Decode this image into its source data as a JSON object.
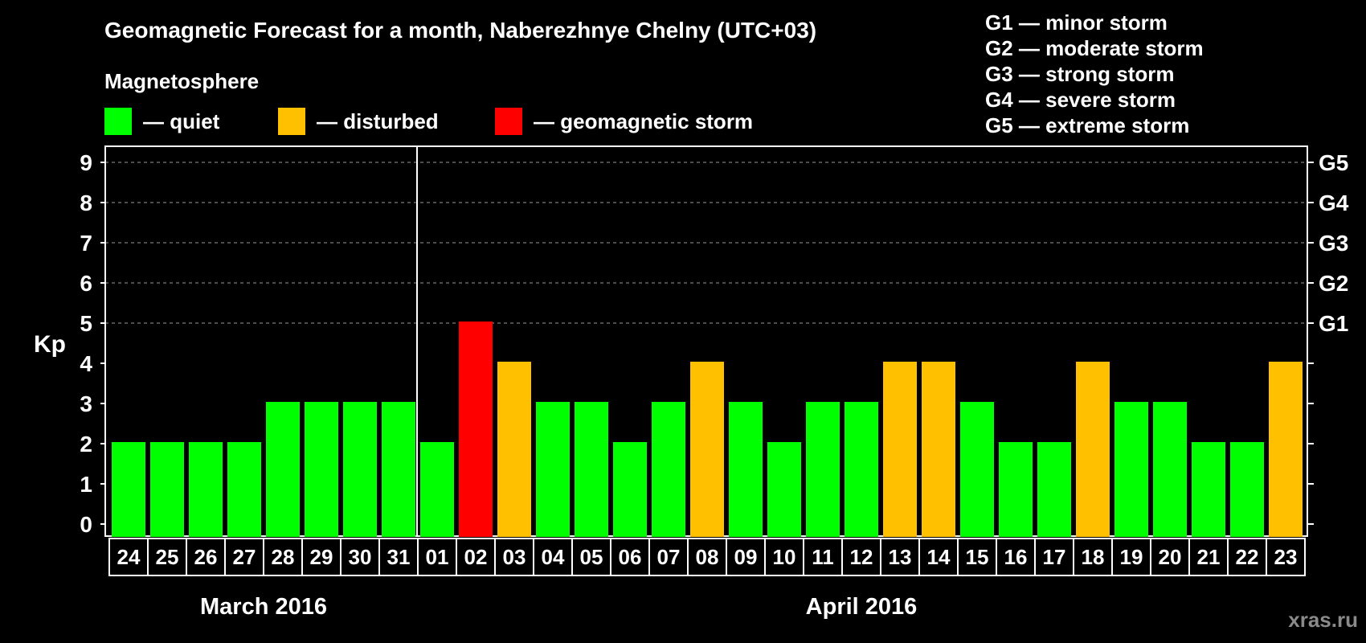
{
  "title": "Geomagnetic Forecast for a month, Naberezhnye Chelny (UTC+03)",
  "legend": {
    "title": "Magnetosphere",
    "items": [
      {
        "label": "— quiet",
        "color": "#00ff00"
      },
      {
        "label": "— disturbed",
        "color": "#ffc000"
      },
      {
        "label": "— geomagnetic storm",
        "color": "#ff0000"
      }
    ]
  },
  "storm_levels": [
    "G1 — minor storm",
    "G2 — moderate storm",
    "G3 — strong storm",
    "G4 — severe storm",
    "G5 — extreme storm"
  ],
  "watermark": "xras.ru",
  "chart_data": {
    "type": "bar",
    "ylabel": "Kp",
    "ylim": [
      0,
      9
    ],
    "yticks": [
      0,
      1,
      2,
      3,
      4,
      5,
      6,
      7,
      8,
      9
    ],
    "grid": true,
    "right_axis_labels": [
      {
        "kp": 5,
        "label": "G1"
      },
      {
        "kp": 6,
        "label": "G2"
      },
      {
        "kp": 7,
        "label": "G3"
      },
      {
        "kp": 8,
        "label": "G4"
      },
      {
        "kp": 9,
        "label": "G5"
      }
    ],
    "categories": [
      "24",
      "25",
      "26",
      "27",
      "28",
      "29",
      "30",
      "31",
      "01",
      "02",
      "03",
      "04",
      "05",
      "06",
      "07",
      "08",
      "09",
      "10",
      "11",
      "12",
      "13",
      "14",
      "15",
      "16",
      "17",
      "18",
      "19",
      "20",
      "21",
      "22",
      "23"
    ],
    "values": [
      2,
      2,
      2,
      2,
      3,
      3,
      3,
      3,
      2,
      5,
      4,
      3,
      3,
      2,
      3,
      4,
      3,
      2,
      3,
      3,
      4,
      4,
      3,
      2,
      2,
      4,
      3,
      3,
      2,
      2,
      4
    ],
    "months": [
      {
        "label": "March 2016",
        "start_index": 0,
        "end_index": 7
      },
      {
        "label": "April 2016",
        "start_index": 8,
        "end_index": 30
      }
    ],
    "colors": {
      "quiet": "#00ff00",
      "disturbed": "#ffc000",
      "storm": "#ff0000"
    }
  }
}
